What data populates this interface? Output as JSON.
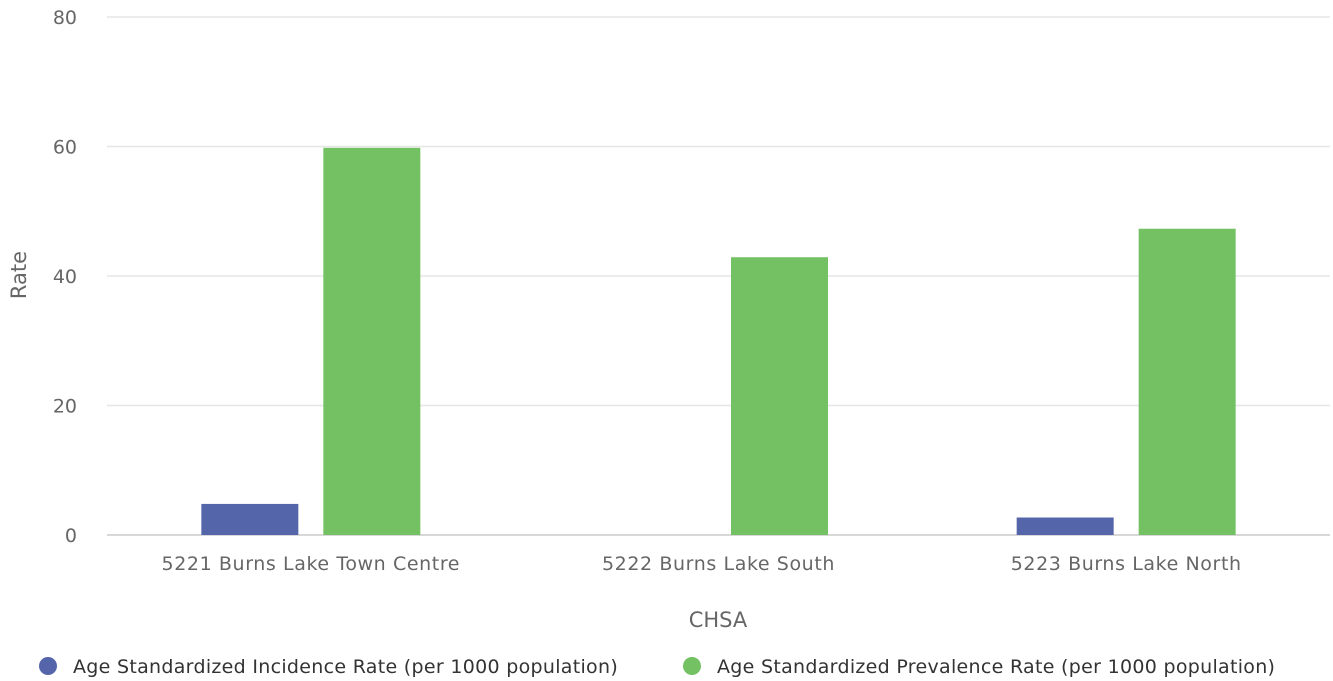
{
  "chart_data": {
    "type": "bar",
    "title": "",
    "xlabel": "CHSA",
    "ylabel": "Rate",
    "ylim": [
      0,
      80
    ],
    "yticks": [
      0,
      20,
      40,
      60,
      80
    ],
    "grid": true,
    "legend_position": "bottom",
    "categories": [
      "5221 Burns Lake Town Centre",
      "5222 Burns Lake South",
      "5223 Burns Lake North"
    ],
    "series": [
      {
        "name": "Age Standardized Incidence Rate (per 1000 population)",
        "color": "#5565aa",
        "values": [
          4.8,
          null,
          2.7
        ]
      },
      {
        "name": "Age Standardized Prevalence Rate (per 1000 population)",
        "color": "#73c163",
        "values": [
          59.8,
          42.9,
          47.3
        ]
      }
    ]
  }
}
